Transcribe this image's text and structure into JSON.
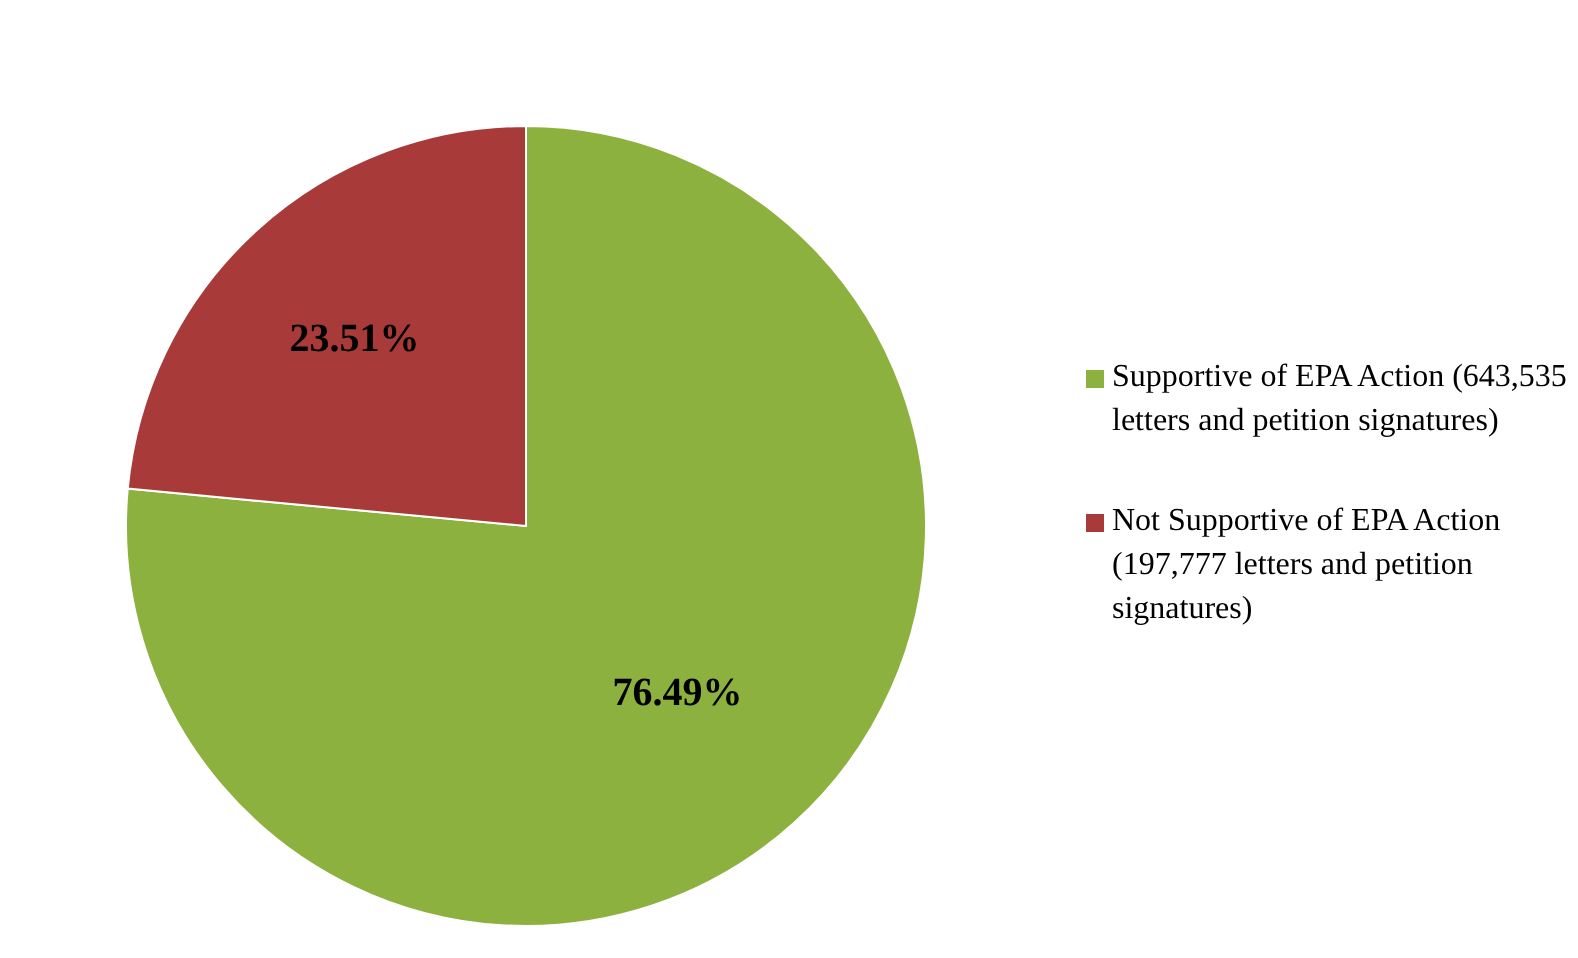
{
  "chart_data": {
    "type": "pie",
    "categories": [
      "Supportive of EPA Action (643,535 letters and petition signatures)",
      "Not Supportive of EPA Action (197,777 letters and petition signatures)"
    ],
    "values": [
      76.49,
      23.51
    ],
    "colors": [
      "#8db13f",
      "#a83a3a"
    ],
    "value_labels": [
      "76.49%",
      "23.51%"
    ],
    "legend": "right"
  }
}
